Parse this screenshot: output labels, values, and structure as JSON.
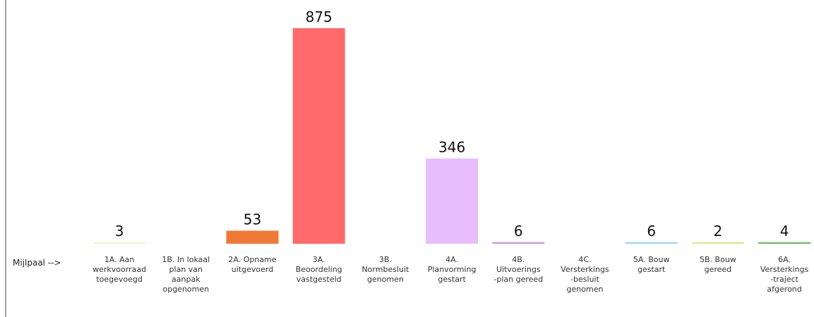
{
  "chart_data": {
    "type": "bar",
    "axis_prefix": "Mijlpaal -->",
    "categories": [
      "1A. Aan werkvoorraad toegevoegd",
      "1B. In lokaal plan van aanpak opgenomen",
      "2A. Opname uitgevoerd",
      "3A. Beoordeling vastgesteld",
      "3B. Normbesluit genomen",
      "4A. Planvorming gestart",
      "4B. Uitvoerings -plan gereed",
      "4C. Versterkings -besluit genomen",
      "5A. Bouw gestart",
      "5B. Bouw gereed",
      "6A. Versterkings -traject afgerond"
    ],
    "category_lines": [
      [
        "1A. Aan",
        "werkvoorraad",
        "toegevoegd"
      ],
      [
        "1B. In lokaal",
        "plan van",
        "aanpak",
        "opgenomen"
      ],
      [
        "2A. Opname",
        "uitgevoerd"
      ],
      [
        "3A.",
        "Beoordeling",
        "vastgesteld"
      ],
      [
        "3B.",
        "Normbesluit",
        "genomen"
      ],
      [
        "4A.",
        "Planvorming",
        "gestart"
      ],
      [
        "4B.",
        "Uitvoerings",
        "-plan gereed"
      ],
      [
        "4C.",
        "Versterkings",
        "-besluit",
        "genomen"
      ],
      [
        "5A. Bouw",
        "gestart"
      ],
      [
        "5B. Bouw",
        "gereed"
      ],
      [
        "6A.",
        "Versterkings",
        "-traject",
        "afgerond"
      ]
    ],
    "values": [
      3,
      null,
      53,
      875,
      null,
      346,
      6,
      null,
      6,
      2,
      4
    ],
    "value_labels": [
      "3",
      "",
      "53",
      "875",
      "",
      "346",
      "6",
      "",
      "6",
      "2",
      "4"
    ],
    "colors": [
      "#f2f2c4",
      null,
      "#f07a35",
      "#ff6a6a",
      null,
      "#e8bdfb",
      "#c88ef0",
      null,
      "#8fd7f2",
      "#cdee7e",
      "#5dbb5d"
    ],
    "ylim": [
      0,
      900
    ],
    "grid": false,
    "legend": "none"
  }
}
